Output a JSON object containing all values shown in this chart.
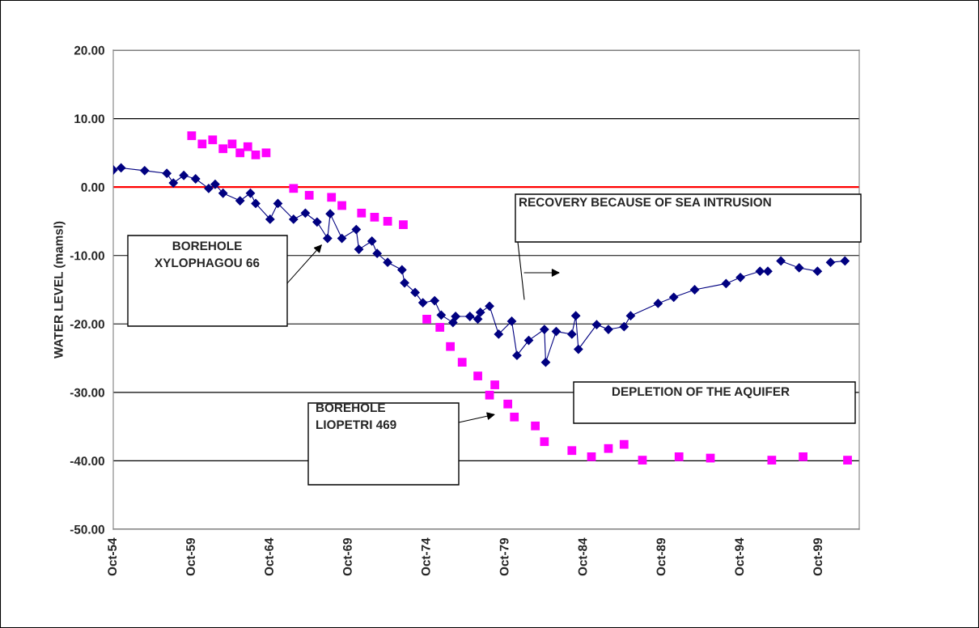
{
  "chart_data": {
    "type": "line",
    "ylabel": "WATER LEVEL (mamsl)",
    "series": [
      {
        "marker": "diamond",
        "color": "#000080",
        "x": [
          "1954-10",
          "1955-04",
          "1956-10",
          "1958-03",
          "1958-08",
          "1959-04",
          "1960-01",
          "1960-11",
          "1961-04",
          "1961-10",
          "1962-11",
          "1963-07",
          "1963-11",
          "1964-10",
          "1965-04",
          "1966-04",
          "1967-01",
          "1967-10",
          "1968-06",
          "1968-08",
          "1969-05",
          "1970-04",
          "1970-06",
          "1971-04",
          "1971-08",
          "1972-04",
          "1973-03",
          "1973-05",
          "1974-01",
          "1974-07",
          "1975-04",
          "1975-09",
          "1976-06",
          "1976-08",
          "1977-07",
          "1978-01",
          "1978-03",
          "1978-10",
          "1979-05",
          "1980-03",
          "1980-07",
          "1981-04",
          "1982-04",
          "1982-05",
          "1983-01",
          "1984-01",
          "1984-04",
          "1984-06",
          "1985-08",
          "1986-05",
          "1987-05",
          "1987-10",
          "1989-07",
          "1990-07",
          "1991-11",
          "1993-11",
          "1994-10",
          "1996-01",
          "1996-07",
          "1996-11",
          "1997-05",
          "1998-07",
          "1999-09",
          "2000-02",
          "2000-07",
          "2001-06"
        ],
        "values": [
          2.5,
          2.8,
          2.4,
          2.0,
          0.6,
          1.7,
          1.2,
          -0.2,
          0.4,
          -0.9,
          -2.0,
          -0.9,
          -2.4,
          -4.7,
          -2.4,
          -4.7,
          -3.8,
          -5.1,
          -7.5,
          -3.9,
          -7.5,
          -6.2,
          -9.1,
          -7.9,
          -9.7,
          -11.0,
          -12.1,
          -14.0,
          -15.4,
          -16.9,
          -16.6,
          -18.7,
          -19.8,
          -18.9,
          -18.9,
          -19.3,
          -18.3,
          -17.4,
          -21.5,
          -19.6,
          -24.6,
          -22.4,
          -20.8,
          -25.6,
          -21.1,
          -21.5,
          -18.8,
          -23.7,
          -20.1,
          -20.8,
          -20.4,
          -18.8,
          -17.0,
          -16.1,
          -15.0,
          -14.1,
          -13.2,
          -12.3,
          -12.3,
          null,
          -10.8,
          -11.8,
          -12.3,
          null,
          -11.0,
          -10.8
        ]
      },
      {
        "type": "scatter",
        "marker": "square",
        "color": "#ff00ff",
        "x": [
          "1959-10",
          "1960-06",
          "1961-02",
          "1961-10",
          "1962-05",
          "1962-11",
          "1963-05",
          "1963-11",
          "1964-07",
          "1965-05",
          "1966-04",
          "1967-04",
          "1968-09",
          "1969-05",
          "1970-08",
          "1971-06",
          "1972-04",
          "1973-04",
          "1974-01",
          "1974-10",
          "1975-08",
          "1976-04",
          "1977-01",
          "1978-01",
          "1978-10",
          "1979-02",
          "1979-12",
          "1980-05",
          "1981-09",
          "1982-04",
          "1984-01",
          "1985-04",
          "1986-05",
          "1987-05",
          "1988-07",
          "1990-11",
          "1992-11",
          "1994-10",
          "1996-10",
          "1998-10",
          "2001-08"
        ],
        "values": [
          7.5,
          6.3,
          6.9,
          5.6,
          6.3,
          5.0,
          5.9,
          4.7,
          5.0,
          null,
          -0.2,
          -1.2,
          -1.5,
          -2.7,
          -3.8,
          -4.4,
          -5.0,
          -5.5,
          null,
          -19.3,
          -20.5,
          -23.3,
          -25.6,
          -27.6,
          -30.4,
          -28.9,
          -31.7,
          -33.6,
          -34.9,
          -37.2,
          -38.5,
          -39.4,
          -38.2,
          -37.6,
          -39.9,
          -39.4,
          -39.6,
          null,
          -39.9,
          -39.4,
          -39.9
        ]
      }
    ],
    "xlim": [
      "1954-10",
      "2002-05"
    ],
    "xticks": [
      {
        "value": "1954-10",
        "label": "Oct-54"
      },
      {
        "value": "1959-10",
        "label": "Oct-59"
      },
      {
        "value": "1964-10",
        "label": "Oct-64"
      },
      {
        "value": "1969-10",
        "label": "Oct-69"
      },
      {
        "value": "1974-10",
        "label": "Oct-74"
      },
      {
        "value": "1979-10",
        "label": "Oct-79"
      },
      {
        "value": "1984-10",
        "label": "Oct-84"
      },
      {
        "value": "1989-10",
        "label": "Oct-89"
      },
      {
        "value": "1994-10",
        "label": "Oct-94"
      },
      {
        "value": "1999-10",
        "label": "Oct-99"
      }
    ],
    "ylim": [
      -50,
      20
    ],
    "yticks": [
      {
        "value": -50,
        "label": "-50.00"
      },
      {
        "value": -40,
        "label": "-40.00"
      },
      {
        "value": -30,
        "label": "-30.00"
      },
      {
        "value": -20,
        "label": "-20.00"
      },
      {
        "value": -10,
        "label": "-10.00"
      },
      {
        "value": 0,
        "label": "0.00"
      },
      {
        "value": 10,
        "label": "10.00"
      },
      {
        "value": 20,
        "label": "20.00"
      }
    ],
    "grid": "y",
    "ref_lines": [
      {
        "axis": "y",
        "value": 0,
        "color": "#ff0000"
      }
    ],
    "annotations": [
      "BOREHOLE\nXYLOPHAGOU 66",
      "BOREHOLE\nLIOPETRI 469",
      "RECOVERY BECAUSE OF SEA INTRUSION",
      "DEPLETION OF THE AQUIFER"
    ]
  }
}
